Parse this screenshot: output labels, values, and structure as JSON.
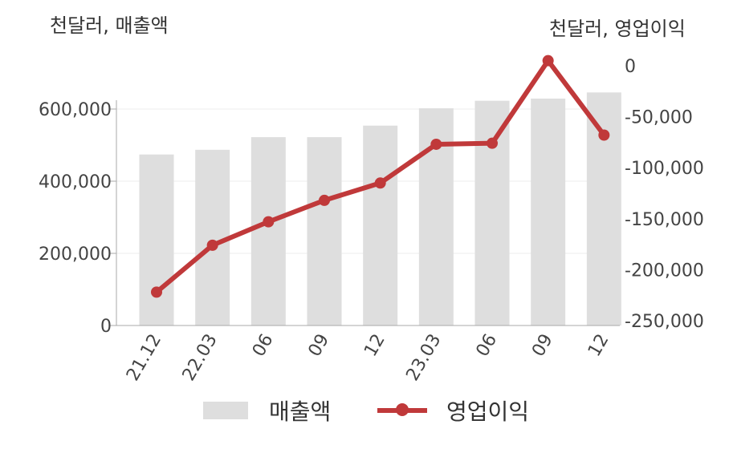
{
  "chart_data": {
    "type": "bar+line",
    "categories": [
      "21.12",
      "22.03",
      "06",
      "09",
      "12",
      "23.03",
      "06",
      "09",
      "12"
    ],
    "series": [
      {
        "name": "매출액",
        "type": "bar",
        "axis": "left",
        "color": "#dedede",
        "values": [
          474000,
          487000,
          522000,
          522000,
          554000,
          602000,
          623000,
          629000,
          646000
        ]
      },
      {
        "name": "영업이익",
        "type": "line",
        "axis": "right",
        "color": "#c0393a",
        "values": [
          -222000,
          -176000,
          -153000,
          -132000,
          -115000,
          -77000,
          -76000,
          5000,
          -68000
        ]
      }
    ],
    "y_left": {
      "label": "천달러, 매출액",
      "ylim": [
        0,
        720000
      ],
      "ticks": [
        0,
        200000,
        400000,
        600000
      ],
      "tick_labels": [
        "0",
        "200,000",
        "400,000",
        "600,000"
      ]
    },
    "y_right": {
      "label": "천달러, 영업이익",
      "ylim": [
        -255000,
        5000
      ],
      "ticks": [
        0,
        -50000,
        -100000,
        -150000,
        -200000,
        -250000
      ],
      "tick_labels": [
        "0",
        "-50,000",
        "-100,000",
        "-150,000",
        "-200,000",
        "-250,000"
      ]
    },
    "grid": true,
    "legend_position": "bottom"
  }
}
